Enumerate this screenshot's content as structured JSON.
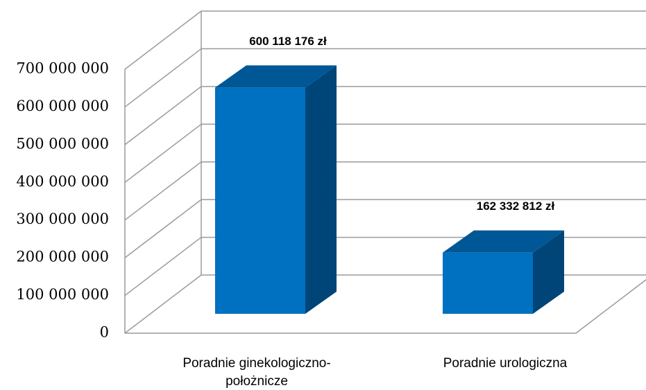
{
  "chart_data": {
    "type": "bar",
    "categories": [
      "Poradnie ginekologiczno-położnicze",
      "Poradnie urologiczna"
    ],
    "values": [
      600118176,
      162332812
    ],
    "value_labels": [
      "600 118 176 zł",
      "162 332 812 zł"
    ],
    "color": "#0070c0",
    "ylim": [
      0,
      700000000
    ],
    "yticks": [
      0,
      {
        "value": 100000000,
        "label": "100 000 000"
      },
      {
        "value": 200000000,
        "label": "200 000 000"
      },
      {
        "value": 300000000,
        "label": "300 000 000"
      },
      {
        "value": 400000000,
        "label": "400 000 000"
      },
      {
        "value": 500000000,
        "label": "500 000 000"
      },
      {
        "value": 600000000,
        "label": "600 000 000"
      },
      {
        "value": 700000000,
        "label": "700 000 000"
      }
    ],
    "grid": true
  }
}
